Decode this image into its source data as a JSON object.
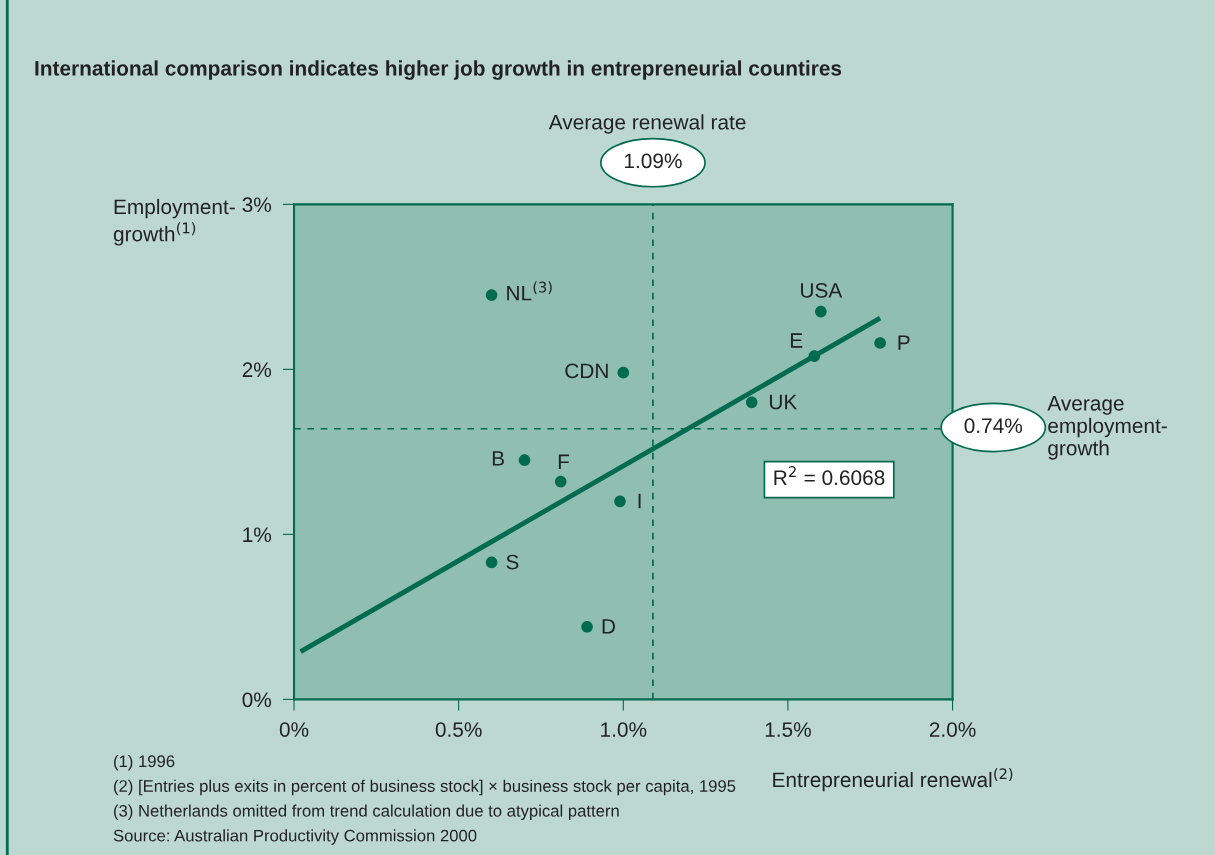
{
  "chart_data": {
    "type": "scatter",
    "title": "International comparison indicates higher job growth in entrepreneurial countires",
    "xlabel": "Entrepreneurial renewal$^{(2)}$",
    "ylabel": "Employment-\ngrowth$^{(1)}$",
    "xlim": [
      0,
      2.0
    ],
    "xticks": [
      {
        "value": 0,
        "label": "0%"
      },
      {
        "value": 0.5,
        "label": "0.5%"
      },
      {
        "value": 1.0,
        "label": "1.0%"
      },
      {
        "value": 1.5,
        "label": "1.5%"
      },
      {
        "value": 2.0,
        "label": "2.0%"
      }
    ],
    "ylim": [
      0,
      3
    ],
    "yticks": [
      {
        "value": 0,
        "label": "0%"
      },
      {
        "value": 1,
        "label": "1%"
      },
      {
        "value": 2,
        "label": "2%"
      },
      {
        "value": 3,
        "label": "3%"
      }
    ],
    "grid": false,
    "series": [
      {
        "marker": "circle",
        "color": "#006b4f",
        "x": [
          0.6,
          1.6,
          1.58,
          1.78,
          1.0,
          1.39,
          0.7,
          0.81,
          0.99,
          0.6,
          0.89
        ],
        "values": [
          2.45,
          2.35,
          2.08,
          2.16,
          1.98,
          1.8,
          1.45,
          1.32,
          1.2,
          0.83,
          0.44
        ]
      },
      {
        "type": "line",
        "marker": "none",
        "color": "#006b4f",
        "x": [
          0.02,
          1.78
        ],
        "values": [
          0.29,
          2.31
        ]
      }
    ],
    "ref_lines": [
      {
        "axis": "x",
        "value": 1.09,
        "label": "1.09%",
        "color": "#006b4f",
        "line_style": "dashed"
      },
      {
        "axis": "y",
        "value": 1.64,
        "color": "#006b4f",
        "line_style": "dashed"
      }
    ],
    "annotations": [
      {
        "text": "NL$^{(3)}$",
        "x": 0.6,
        "y": 2.45
      },
      {
        "text": "USA",
        "x": 1.6,
        "y": 2.35
      },
      {
        "text": "E",
        "x": 1.58,
        "y": 2.08
      },
      {
        "text": "P",
        "x": 1.78,
        "y": 2.16
      },
      {
        "text": "CDN",
        "x": 1.0,
        "y": 1.98
      },
      {
        "text": "UK",
        "x": 1.39,
        "y": 1.8
      },
      {
        "text": "B",
        "x": 0.7,
        "y": 1.45
      },
      {
        "text": "F",
        "x": 0.81,
        "y": 1.32
      },
      {
        "text": "I",
        "x": 0.99,
        "y": 1.2
      },
      {
        "text": "S",
        "x": 0.6,
        "y": 0.83
      },
      {
        "text": "D",
        "x": 0.89,
        "y": 0.44
      },
      "Average renewal rate",
      "0.74%",
      "Average\nemployment-\ngrowth",
      "R$^{2}$ = 0.6068",
      "(1) 1996",
      "(2) [Entries plus exits in percent of business stock] × business stock per capita, 1995",
      "(3) Netherlands omitted from trend calculation due to atypical pattern",
      "Source: Australian Productivity Commission 2000"
    ]
  }
}
